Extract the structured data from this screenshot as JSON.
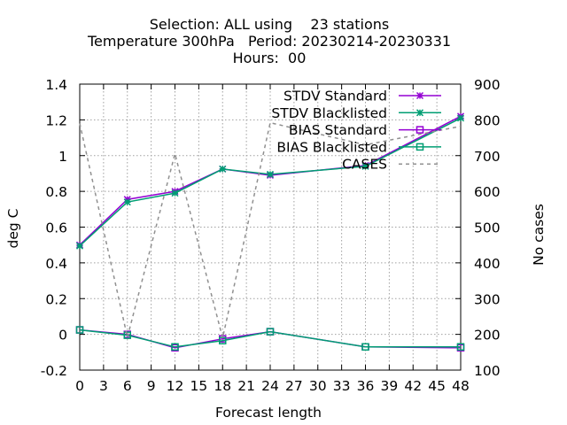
{
  "chart_data": {
    "type": "line",
    "title_lines": [
      "Selection: ALL using    23 stations",
      "Temperature 300hPa   Period: 20230214-20230331",
      "Hours:  00"
    ],
    "xlabel": "Forecast length",
    "ylabel": "deg C",
    "y2label": "No cases",
    "xlim": [
      0,
      48
    ],
    "ylim": [
      -0.2,
      1.4
    ],
    "y2lim": [
      100,
      900
    ],
    "x_ticks": [
      "0",
      "3",
      "6",
      "9",
      "12",
      "15",
      "18",
      "21",
      "24",
      "27",
      "30",
      "33",
      "36",
      "39",
      "42",
      "45",
      "48"
    ],
    "y_ticks": [
      "-0.2",
      "0",
      "0.2",
      "0.4",
      "0.6",
      "0.8",
      "1",
      "1.2",
      "1.4"
    ],
    "y2_ticks": [
      "100",
      "200",
      "300",
      "400",
      "500",
      "600",
      "700",
      "800",
      "900"
    ],
    "grid": true,
    "legend_position": "top-right",
    "series": [
      {
        "name": "STDV Standard",
        "color": "#9400d3",
        "marker": "x",
        "dash": false,
        "axis": "y1",
        "x": [
          0,
          6,
          12,
          18,
          24,
          36,
          48
        ],
        "values": [
          0.5,
          0.755,
          0.8,
          0.925,
          0.89,
          0.945,
          1.22
        ]
      },
      {
        "name": "STDV Blacklisted",
        "color": "#009e73",
        "marker": "x",
        "dash": false,
        "axis": "y1",
        "x": [
          0,
          6,
          12,
          18,
          24,
          36,
          48
        ],
        "values": [
          0.495,
          0.74,
          0.79,
          0.925,
          0.895,
          0.94,
          1.21
        ]
      },
      {
        "name": "BIAS Standard",
        "color": "#9400d3",
        "marker": "square",
        "dash": false,
        "axis": "y1",
        "x": [
          0,
          6,
          12,
          18,
          24,
          36,
          48
        ],
        "values": [
          0.025,
          0.0,
          -0.075,
          -0.025,
          0.015,
          -0.07,
          -0.075
        ]
      },
      {
        "name": "BIAS Blacklisted",
        "color": "#009e73",
        "marker": "square",
        "dash": false,
        "axis": "y1",
        "x": [
          0,
          6,
          12,
          18,
          24,
          36,
          48
        ],
        "values": [
          0.025,
          -0.005,
          -0.07,
          -0.035,
          0.015,
          -0.07,
          -0.07
        ]
      },
      {
        "name": "CASES",
        "color": "#909090",
        "marker": "none",
        "dash": true,
        "axis": "y2",
        "x": [
          0,
          6,
          12,
          18,
          24,
          36,
          48
        ],
        "values": [
          790,
          192,
          705,
          190,
          792,
          730,
          782
        ]
      }
    ]
  }
}
